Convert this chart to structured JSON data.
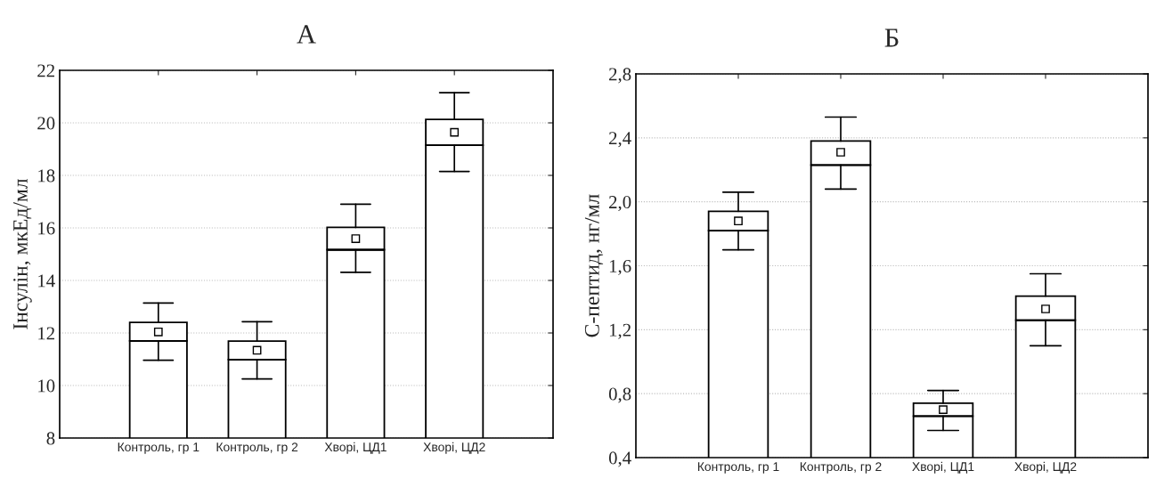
{
  "chart_data": [
    {
      "type": "box",
      "title": "А",
      "ylabel": "Інсулін, мкЕд/мл",
      "grid": "y",
      "marker": "square",
      "categories": [
        "Контроль, гр 1",
        "Контроль, гр 2",
        "Хворі, ЦД1",
        "Хворі, ЦД2"
      ],
      "ylim": [
        8,
        22
      ],
      "yticks": [
        8,
        10,
        12,
        14,
        16,
        18,
        20,
        22
      ],
      "series": [
        {
          "type": "bar",
          "color": "#ffffff",
          "values": [
            11.7,
            10.99,
            15.17,
            19.15
          ]
        },
        {
          "color": "#ffffff",
          "boxes": [
            {
              "low": 10.96,
              "q1": 11.7,
              "median": 11.7,
              "q3": 12.4,
              "high": 13.14,
              "mean": 12.04
            },
            {
              "low": 10.25,
              "q1": 10.99,
              "median": 10.99,
              "q3": 11.69,
              "high": 12.43,
              "mean": 11.34
            },
            {
              "low": 14.31,
              "q1": 15.17,
              "median": 15.17,
              "q3": 16.02,
              "high": 16.9,
              "mean": 15.59
            },
            {
              "low": 18.15,
              "q1": 19.15,
              "median": 19.15,
              "q3": 20.13,
              "high": 21.15,
              "mean": 19.64
            }
          ]
        }
      ]
    },
    {
      "type": "box",
      "title": "Б",
      "ylabel": "С-пептид, нг/мл",
      "grid": "y",
      "marker": "square",
      "categories": [
        "Контроль, гр 1",
        "Контроль, гр 2",
        "Хворі, ЦД1",
        "Хворі, ЦД2"
      ],
      "ylim": [
        0.4,
        2.8
      ],
      "yticks": [
        {
          "value": 0.4,
          "label": "0,4"
        },
        {
          "value": 0.8,
          "label": "0,8"
        },
        {
          "value": 1.2,
          "label": "1,2"
        },
        {
          "value": 1.6,
          "label": "1,6"
        },
        {
          "value": 2.0,
          "label": "2,0"
        },
        {
          "value": 2.4,
          "label": "2,4"
        },
        {
          "value": 2.8,
          "label": "2,8"
        }
      ],
      "series": [
        {
          "type": "bar",
          "color": "#ffffff",
          "values": [
            1.82,
            2.23,
            0.66,
            1.26
          ]
        },
        {
          "color": "#ffffff",
          "boxes": [
            {
              "low": 1.7,
              "q1": 1.82,
              "median": 1.82,
              "q3": 1.94,
              "high": 2.06,
              "mean": 1.88
            },
            {
              "low": 2.08,
              "q1": 2.23,
              "median": 2.23,
              "q3": 2.38,
              "high": 2.53,
              "mean": 2.31
            },
            {
              "low": 0.57,
              "q1": 0.66,
              "median": 0.66,
              "q3": 0.74,
              "high": 0.82,
              "mean": 0.7
            },
            {
              "low": 1.1,
              "q1": 1.26,
              "median": 1.26,
              "q3": 1.41,
              "high": 1.55,
              "mean": 1.33
            }
          ]
        }
      ]
    }
  ]
}
